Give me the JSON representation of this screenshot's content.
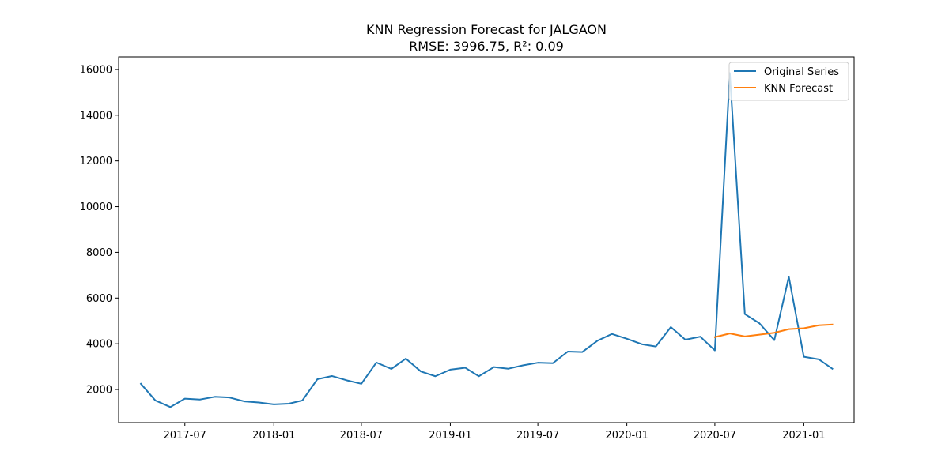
{
  "chart_data": {
    "type": "line",
    "title": "KNN Regression Forecast for JALGAON",
    "subtitle": "RMSE: 3996.75, R²: 0.09",
    "xlabel": "",
    "ylabel": "",
    "xlim": [
      "2017-02-14",
      "2021-04-15"
    ],
    "ylim": [
      550,
      16550
    ],
    "x_ticks": [
      "2017-07",
      "2018-01",
      "2018-07",
      "2019-01",
      "2019-07",
      "2020-01",
      "2020-07",
      "2021-01"
    ],
    "y_ticks": [
      2000,
      4000,
      6000,
      8000,
      10000,
      12000,
      14000,
      16000
    ],
    "grid": false,
    "legend_position": "top-right",
    "series": [
      {
        "name": "Original Series",
        "color": "#1f77b4",
        "x": [
          "2017-04-01",
          "2017-05-01",
          "2017-06-01",
          "2017-07-01",
          "2017-08-01",
          "2017-09-01",
          "2017-10-01",
          "2017-11-01",
          "2017-12-01",
          "2018-01-01",
          "2018-02-01",
          "2018-03-01",
          "2018-04-01",
          "2018-05-01",
          "2018-06-01",
          "2018-07-01",
          "2018-08-01",
          "2018-09-01",
          "2018-10-01",
          "2018-11-01",
          "2018-12-01",
          "2019-01-01",
          "2019-02-01",
          "2019-03-01",
          "2019-04-01",
          "2019-05-01",
          "2019-06-01",
          "2019-07-01",
          "2019-08-01",
          "2019-09-01",
          "2019-10-01",
          "2019-11-01",
          "2019-12-01",
          "2020-01-01",
          "2020-02-01",
          "2020-03-01",
          "2020-04-01",
          "2020-05-01",
          "2020-06-01",
          "2020-07-01",
          "2020-08-01",
          "2020-09-01",
          "2020-10-01",
          "2020-11-01",
          "2020-12-01",
          "2021-01-01",
          "2021-02-01",
          "2021-03-01"
        ],
        "values": [
          2250,
          1520,
          1230,
          1600,
          1560,
          1680,
          1650,
          1480,
          1430,
          1350,
          1380,
          1520,
          2450,
          2590,
          2400,
          2250,
          3180,
          2900,
          3350,
          2790,
          2580,
          2870,
          2950,
          2580,
          2980,
          2910,
          3060,
          3170,
          3150,
          3660,
          3640,
          4130,
          4430,
          4220,
          3980,
          3880,
          4730,
          4180,
          4310,
          3710,
          15840,
          5300,
          4900,
          4160,
          6930,
          3430,
          3320,
          2910
        ]
      },
      {
        "name": "KNN Forecast",
        "color": "#ff7f0e",
        "x": [
          "2020-07-01",
          "2020-08-01",
          "2020-09-01",
          "2020-10-01",
          "2020-11-01",
          "2020-12-01",
          "2021-01-01",
          "2021-02-01",
          "2021-03-01"
        ],
        "values": [
          4290,
          4450,
          4320,
          4400,
          4480,
          4640,
          4680,
          4810,
          4840
        ]
      }
    ]
  }
}
